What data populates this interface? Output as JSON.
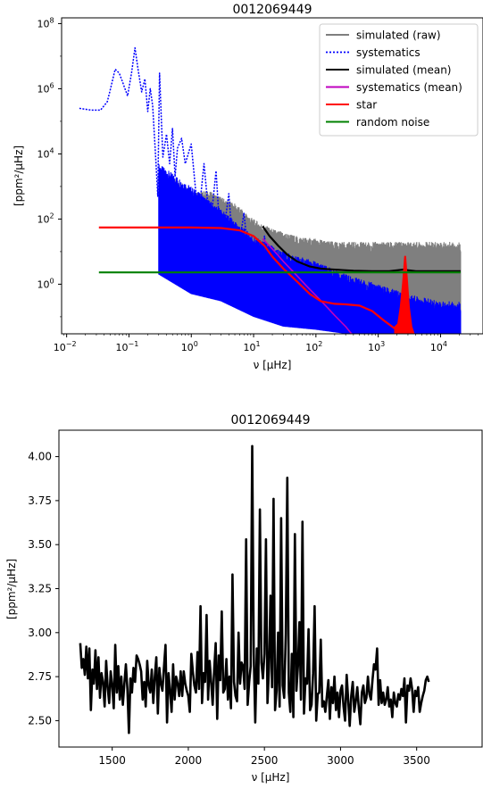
{
  "chart_data": [
    {
      "type": "line",
      "title": "0012069449",
      "xlabel": "ν [μHz]",
      "ylabel": "[ppm²/μHz]",
      "xscale": "log",
      "yscale": "log",
      "xlim": [
        0.0083,
        48000
      ],
      "ylim": [
        0.03,
        150000000
      ],
      "xticks": [
        {
          "value": 0.01,
          "base": "10",
          "exp": "−2"
        },
        {
          "value": 0.1,
          "base": "10",
          "exp": "−1"
        },
        {
          "value": 1,
          "base": "10",
          "exp": "0"
        },
        {
          "value": 10,
          "base": "10",
          "exp": "1"
        },
        {
          "value": 100,
          "base": "10",
          "exp": "2"
        },
        {
          "value": 1000,
          "base": "10",
          "exp": "3"
        },
        {
          "value": 10000,
          "base": "10",
          "exp": "4"
        }
      ],
      "yticks": [
        {
          "value": 1,
          "base": "10",
          "exp": "0"
        },
        {
          "value": 100,
          "base": "10",
          "exp": "2"
        },
        {
          "value": 10000,
          "base": "10",
          "exp": "4"
        },
        {
          "value": 1000000,
          "base": "10",
          "exp": "6"
        },
        {
          "value": 100000000,
          "base": "10",
          "exp": "8"
        }
      ],
      "legend_position": "top-right",
      "series": [
        {
          "name": "simulated (raw)",
          "color": "#7f7f7f",
          "style": "solid",
          "envelope": {
            "x": [
              0.5,
              1,
              2,
              5,
              10,
              20,
              50,
              100,
              200,
              500,
              1000,
              2000,
              5000,
              10000,
              21000
            ],
            "upper": [
              2000,
              800,
              700,
              300,
              100,
              50,
              30,
              25,
              20,
              20,
              20,
              20,
              20,
              20,
              20
            ],
            "lower": [
              5,
              3,
              1,
              0.3,
              0.1,
              0.08,
              0.05,
              0.05,
              0.04,
              0.03,
              0.03,
              0.03,
              0.03,
              0.03,
              0.03
            ]
          }
        },
        {
          "name": "systematics",
          "color": "#0000ff",
          "style": "dotted",
          "points": [
            [
              0.016,
              250000
            ],
            [
              0.025,
              220000
            ],
            [
              0.035,
              220000
            ],
            [
              0.045,
              400000
            ],
            [
              0.05,
              900000
            ],
            [
              0.06,
              4000000
            ],
            [
              0.07,
              3000000
            ],
            [
              0.08,
              1500000
            ],
            [
              0.095,
              600000
            ],
            [
              0.11,
              3000000
            ],
            [
              0.125,
              18000000
            ],
            [
              0.14,
              4000000
            ],
            [
              0.16,
              800000
            ],
            [
              0.18,
              2000000
            ],
            [
              0.2,
              200000
            ],
            [
              0.22,
              1000000
            ],
            [
              0.24,
              300000
            ],
            [
              0.27,
              6000
            ],
            [
              0.29,
              500
            ],
            [
              0.31,
              3000000
            ],
            [
              0.35,
              8000
            ],
            [
              0.4,
              40000
            ],
            [
              0.45,
              5000
            ],
            [
              0.5,
              60000
            ],
            [
              0.55,
              2000
            ],
            [
              0.6,
              15000
            ],
            [
              0.7,
              30000
            ],
            [
              0.8,
              5000
            ],
            [
              1,
              20000
            ],
            [
              1.3,
              100
            ],
            [
              1.6,
              5000
            ],
            [
              2,
              50
            ],
            [
              2.5,
              3000
            ],
            [
              3,
              10
            ],
            [
              4,
              600
            ],
            [
              5,
              2
            ],
            [
              7,
              150
            ],
            [
              10,
              0.3
            ],
            [
              15,
              30
            ],
            [
              20,
              0.1
            ],
            [
              30,
              10
            ],
            [
              50,
              0.08
            ],
            [
              70,
              5
            ],
            [
              100,
              0.06
            ],
            [
              150,
              3
            ],
            [
              200,
              0.05
            ],
            [
              300,
              2
            ],
            [
              500,
              0.04
            ]
          ],
          "envelope": {
            "x": [
              0.3,
              1,
              3,
              10,
              30,
              100,
              300,
              1000,
              3000,
              10000,
              21000
            ],
            "upper": [
              5000,
              1000,
              200,
              30,
              10,
              5,
              2,
              1,
              0.5,
              0.3,
              0.3
            ],
            "lower": [
              2,
              0.5,
              0.3,
              0.1,
              0.05,
              0.04,
              0.03,
              0.03,
              0.03,
              0.03,
              0.03
            ]
          }
        },
        {
          "name": "simulated (mean)",
          "color": "#000000",
          "style": "solid",
          "points": [
            [
              14,
              60
            ],
            [
              18,
              30
            ],
            [
              25,
              15
            ],
            [
              35,
              8
            ],
            [
              50,
              5
            ],
            [
              80,
              3.5
            ],
            [
              120,
              3
            ],
            [
              200,
              2.8
            ],
            [
              400,
              2.6
            ],
            [
              800,
              2.5
            ],
            [
              1500,
              2.5
            ],
            [
              2500,
              2.8
            ],
            [
              4000,
              2.5
            ],
            [
              8000,
              2.5
            ],
            [
              21000,
              2.5
            ]
          ]
        },
        {
          "name": "systematics (mean)",
          "color": "#bf00bf",
          "style": "solid",
          "points": [
            [
              14,
              25
            ],
            [
              20,
              12
            ],
            [
              30,
              5
            ],
            [
              50,
              1.8
            ],
            [
              70,
              0.9
            ],
            [
              100,
              0.45
            ],
            [
              150,
              0.2
            ],
            [
              200,
              0.11
            ],
            [
              300,
              0.05
            ],
            [
              350,
              0.035
            ],
            [
              450,
              0.02
            ]
          ]
        },
        {
          "name": "star",
          "color": "#ff0000",
          "style": "solid",
          "points": [
            [
              0.033,
              55
            ],
            [
              0.1,
              55
            ],
            [
              1,
              55
            ],
            [
              3,
              53
            ],
            [
              6,
              45
            ],
            [
              10,
              30
            ],
            [
              15,
              15
            ],
            [
              20,
              7
            ],
            [
              30,
              3
            ],
            [
              50,
              1.2
            ],
            [
              80,
              0.5
            ],
            [
              120,
              0.3
            ],
            [
              200,
              0.25
            ],
            [
              300,
              0.24
            ],
            [
              500,
              0.22
            ],
            [
              800,
              0.15
            ],
            [
              1200,
              0.08
            ],
            [
              1800,
              0.045
            ],
            [
              2100,
              0.06
            ],
            [
              2300,
              0.2
            ],
            [
              2500,
              1.0
            ],
            [
              2700,
              7
            ],
            [
              2900,
              1.2
            ],
            [
              3100,
              0.2
            ],
            [
              3400,
              0.05
            ],
            [
              3700,
              0.03
            ]
          ]
        },
        {
          "name": "random noise",
          "color": "#008000",
          "style": "solid",
          "points": [
            [
              0.033,
              2.3
            ],
            [
              21000,
              2.3
            ]
          ]
        }
      ],
      "red_fill_around": 2700
    },
    {
      "type": "line",
      "title": "0012069449",
      "xlabel": "ν [μHz]",
      "ylabel": "[ppm²/μHz]",
      "xlim": [
        1150,
        3930
      ],
      "ylim": [
        2.35,
        4.15
      ],
      "xticks": [
        1500,
        2000,
        2500,
        3000,
        3500
      ],
      "yticks": [
        2.5,
        2.75,
        3.0,
        3.25,
        3.5,
        3.75,
        4.0
      ],
      "xtick_labels": [
        "1500",
        "2000",
        "2500",
        "3000",
        "3500"
      ],
      "ytick_labels": [
        "2.50",
        "2.75",
        "3.00",
        "3.25",
        "3.50",
        "3.75",
        "4.00"
      ],
      "series": [
        {
          "color": "#000000",
          "x_start": 1290,
          "x_step": 10,
          "values": [
            2.94,
            2.8,
            2.85,
            2.76,
            2.92,
            2.74,
            2.91,
            2.56,
            2.79,
            2.71,
            2.9,
            2.68,
            2.86,
            2.63,
            2.77,
            2.72,
            2.58,
            2.84,
            2.69,
            2.6,
            2.78,
            2.7,
            2.57,
            2.93,
            2.66,
            2.81,
            2.62,
            2.75,
            2.59,
            2.71,
            2.82,
            2.68,
            2.43,
            2.74,
            2.66,
            2.8,
            2.72,
            2.87,
            2.85,
            2.82,
            2.78,
            2.62,
            2.72,
            2.58,
            2.84,
            2.7,
            2.66,
            2.79,
            2.6,
            2.75,
            2.86,
            2.54,
            2.8,
            2.71,
            2.67,
            2.8,
            2.93,
            2.49,
            2.77,
            2.67,
            2.55,
            2.82,
            2.62,
            2.75,
            2.71,
            2.64,
            2.78,
            2.64,
            2.78,
            2.71,
            2.67,
            2.64,
            2.55,
            2.88,
            2.78,
            2.7,
            2.66,
            2.89,
            2.68,
            3.15,
            2.6,
            2.77,
            2.72,
            3.1,
            2.62,
            2.84,
            2.72,
            2.59,
            2.79,
            2.94,
            2.51,
            2.87,
            2.73,
            3.12,
            2.66,
            2.68,
            2.85,
            2.62,
            2.75,
            2.57,
            3.33,
            2.72,
            2.64,
            2.61,
            3.0,
            2.71,
            2.83,
            2.81,
            2.68,
            3.53,
            2.59,
            2.72,
            2.81,
            4.06,
            2.88,
            2.49,
            2.91,
            2.71,
            3.7,
            2.83,
            2.74,
            2.88,
            3.53,
            2.6,
            2.8,
            3.21,
            2.69,
            3.76,
            2.56,
            2.67,
            3.0,
            2.58,
            3.65,
            2.7,
            2.63,
            2.99,
            3.88,
            2.66,
            2.55,
            2.88,
            2.52,
            3.56,
            2.67,
            2.81,
            3.06,
            2.62,
            3.63,
            2.54,
            2.74,
            2.71,
            3.02,
            2.56,
            2.59,
            2.77,
            3.15,
            2.5,
            2.65,
            2.66,
            2.96,
            2.58,
            2.61,
            2.55,
            2.64,
            2.73,
            2.51,
            2.69,
            2.6,
            2.75,
            2.56,
            2.66,
            2.52,
            2.67,
            2.7,
            2.58,
            2.5,
            2.76,
            2.62,
            2.47,
            2.64,
            2.72,
            2.55,
            2.61,
            2.69,
            2.57,
            2.48,
            2.66,
            2.7,
            2.6,
            2.63,
            2.75,
            2.65,
            2.62,
            2.73,
            2.82,
            2.79,
            2.91,
            2.59,
            2.73,
            2.6,
            2.66,
            2.59,
            2.62,
            2.69,
            2.58,
            2.62,
            2.52,
            2.66,
            2.6,
            2.58,
            2.65,
            2.62,
            2.68,
            2.64,
            2.74,
            2.49,
            2.7,
            2.67,
            2.74,
            2.68,
            2.55,
            2.67,
            2.64,
            2.69,
            2.55,
            2.6,
            2.64,
            2.67,
            2.73,
            2.75,
            2.72
          ]
        }
      ]
    }
  ]
}
